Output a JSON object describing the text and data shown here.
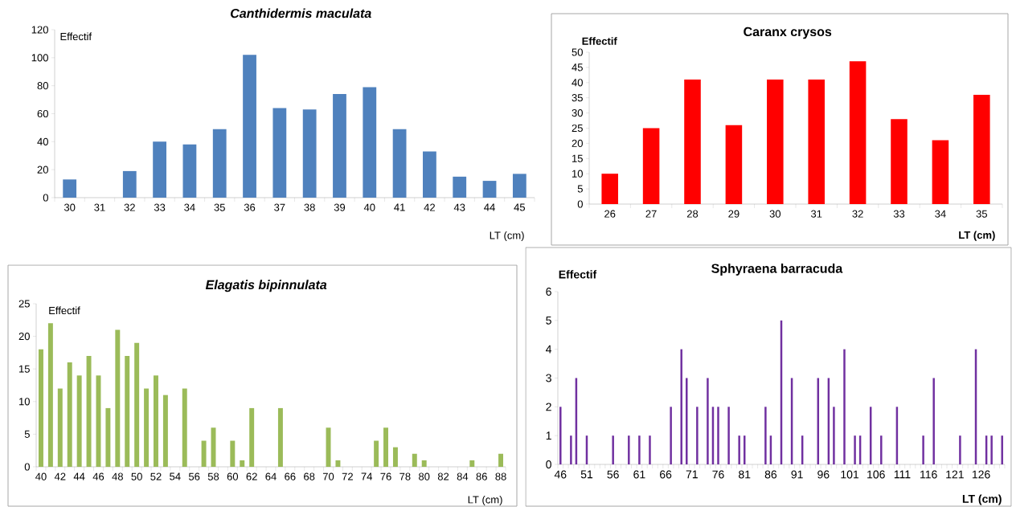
{
  "chart_data": [
    {
      "type": "bar",
      "title": "Canthidermis maculata",
      "xlabel": "LT (cm)",
      "ylabel": "Effectif",
      "color": "#4f81bd",
      "categories": [
        "30",
        "31",
        "32",
        "33",
        "34",
        "35",
        "36",
        "37",
        "38",
        "39",
        "40",
        "41",
        "42",
        "43",
        "44",
        "45"
      ],
      "values": [
        13,
        0,
        19,
        40,
        38,
        49,
        102,
        64,
        63,
        74,
        79,
        49,
        33,
        15,
        12,
        17
      ],
      "ylim": [
        0,
        120
      ],
      "yticks": [
        0,
        20,
        40,
        60,
        80,
        100,
        120
      ]
    },
    {
      "type": "bar",
      "title": "Caranx crysos",
      "xlabel": "LT (cm)",
      "ylabel": "Effectif",
      "color": "#ff0000",
      "categories": [
        "26",
        "27",
        "28",
        "29",
        "30",
        "31",
        "32",
        "33",
        "34",
        "35"
      ],
      "values": [
        10,
        25,
        41,
        26,
        41,
        41,
        47,
        28,
        21,
        36
      ],
      "ylim": [
        0,
        50
      ],
      "yticks": [
        0,
        5,
        10,
        15,
        20,
        25,
        30,
        35,
        40,
        45,
        50
      ]
    },
    {
      "type": "bar",
      "title": "Elagatis bipinnulata",
      "xlabel": "LT (cm)",
      "ylabel": "Effectif",
      "color": "#9bbb59",
      "categories": [
        "40",
        null,
        "42",
        null,
        "44",
        null,
        "46",
        null,
        "48",
        null,
        "50",
        null,
        "52",
        null,
        "54",
        null,
        "56",
        null,
        "58",
        null,
        "60",
        null,
        "62",
        null,
        "64",
        null,
        "66",
        null,
        "68",
        null,
        "70",
        null,
        "72",
        null,
        "74",
        null,
        "76",
        null,
        "78",
        null,
        "80",
        null,
        "82",
        null,
        "84",
        null,
        "86",
        null,
        "88"
      ],
      "values": [
        18,
        22,
        12,
        16,
        14,
        17,
        14,
        9,
        21,
        17,
        19,
        12,
        14,
        11,
        0,
        12,
        0,
        4,
        6,
        0,
        4,
        1,
        9,
        0,
        0,
        9,
        0,
        0,
        0,
        0,
        6,
        1,
        0,
        0,
        0,
        4,
        6,
        3,
        0,
        2,
        1,
        0,
        0,
        0,
        0,
        1,
        0,
        0,
        2
      ],
      "ylim": [
        0,
        25
      ],
      "yticks": [
        0,
        5,
        10,
        15,
        20,
        25
      ]
    },
    {
      "type": "bar",
      "title": "Sphyraena barracuda",
      "xlabel": "LT (cm)",
      "ylabel": "Effectif",
      "color": "#7030a0",
      "categories": [
        "46",
        null,
        null,
        null,
        null,
        "51",
        null,
        null,
        null,
        null,
        "56",
        null,
        null,
        null,
        null,
        "61",
        null,
        null,
        null,
        null,
        "66",
        null,
        null,
        null,
        null,
        "71",
        null,
        null,
        null,
        null,
        "76",
        null,
        null,
        null,
        null,
        "81",
        null,
        null,
        null,
        null,
        "86",
        null,
        null,
        null,
        null,
        "91",
        null,
        null,
        null,
        null,
        "96",
        null,
        null,
        null,
        null,
        "101",
        null,
        null,
        null,
        null,
        "106",
        null,
        null,
        null,
        null,
        "111",
        null,
        null,
        null,
        null,
        "116",
        null,
        null,
        null,
        null,
        "121",
        null,
        null,
        null,
        null,
        "126",
        null,
        null,
        null,
        null
      ],
      "values": [
        2,
        0,
        1,
        3,
        0,
        1,
        0,
        0,
        0,
        0,
        1,
        0,
        0,
        1,
        0,
        1,
        0,
        1,
        0,
        0,
        0,
        2,
        0,
        4,
        3,
        0,
        2,
        0,
        3,
        2,
        2,
        0,
        2,
        0,
        1,
        1,
        0,
        0,
        0,
        2,
        1,
        0,
        5,
        0,
        3,
        0,
        1,
        0,
        0,
        3,
        0,
        3,
        2,
        0,
        4,
        0,
        1,
        1,
        0,
        2,
        0,
        1,
        0,
        0,
        2,
        0,
        0,
        0,
        0,
        1,
        0,
        3,
        0,
        0,
        0,
        0,
        1,
        0,
        0,
        4,
        0,
        1,
        1,
        0,
        1
      ],
      "ylim": [
        0,
        6
      ],
      "yticks": [
        0,
        1,
        2,
        3,
        4,
        5,
        6
      ]
    }
  ]
}
